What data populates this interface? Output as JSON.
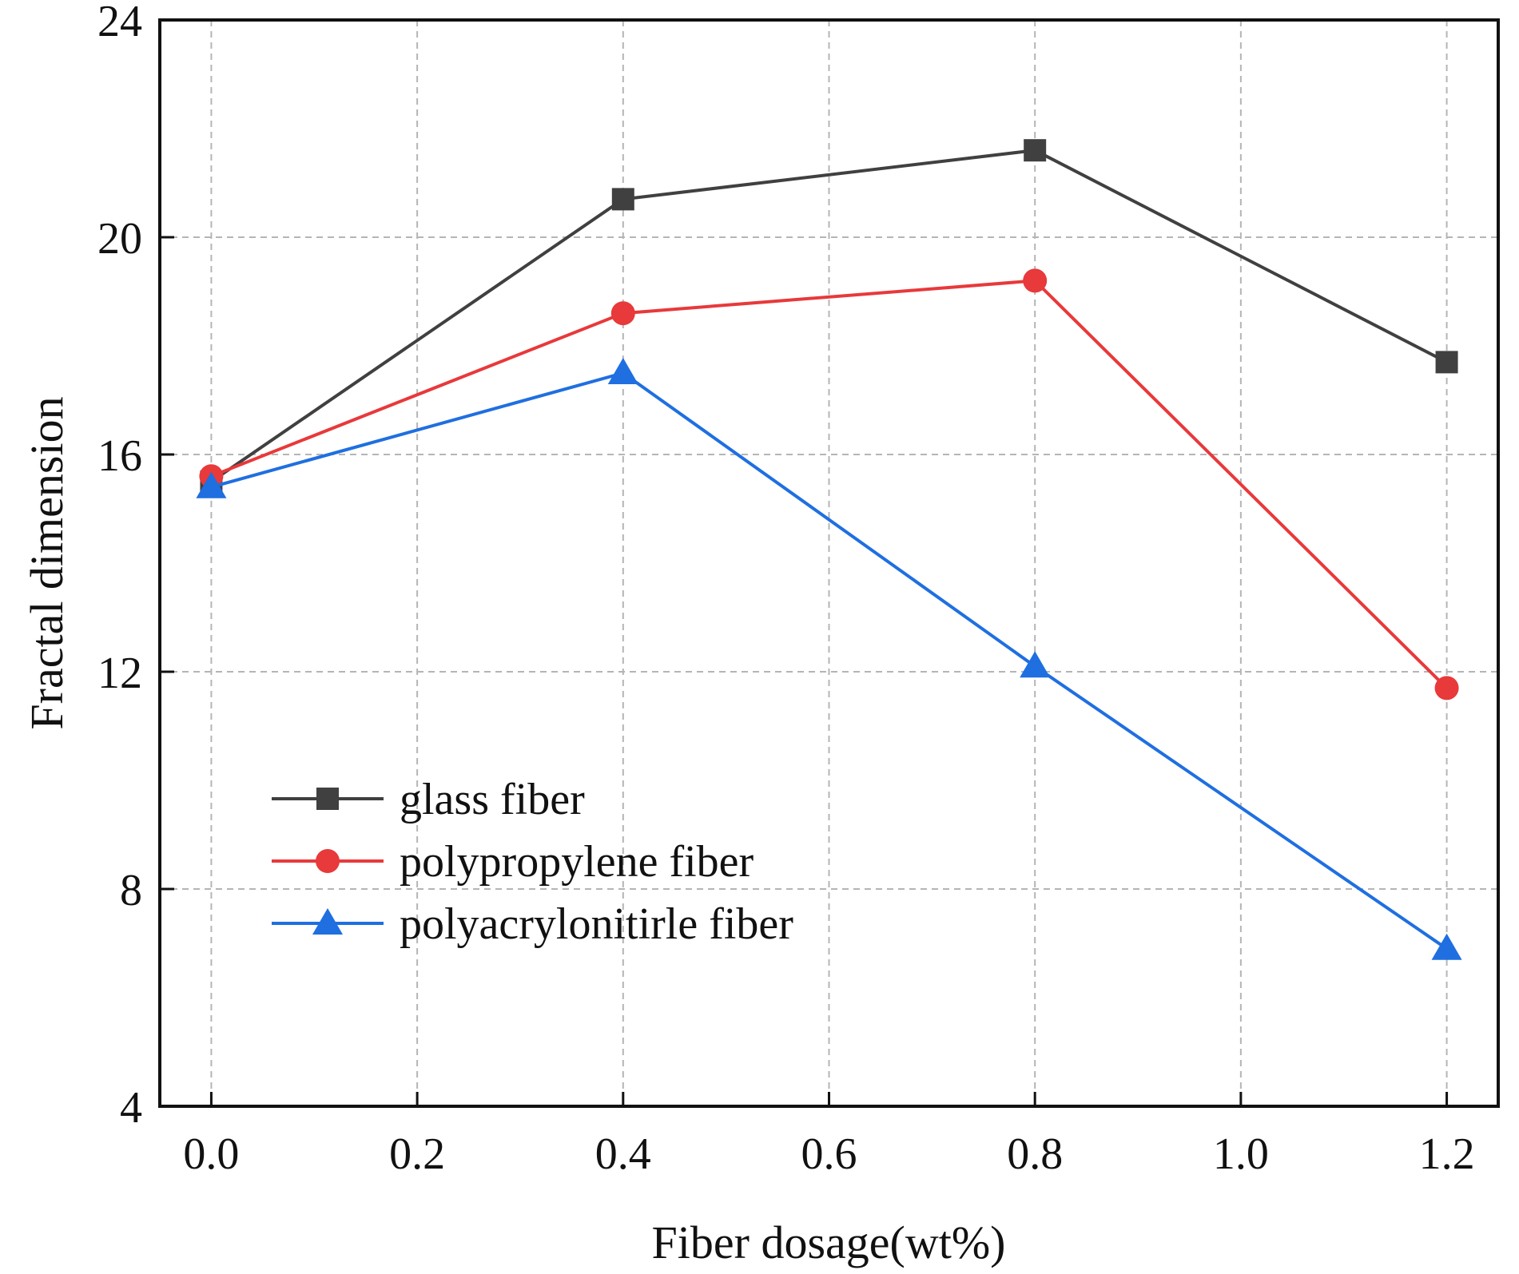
{
  "chart_data": {
    "type": "line",
    "title": "",
    "xlabel": "Fiber dosage(wt%)",
    "ylabel": "Fractal dimension",
    "xlim": [
      -0.05,
      1.25
    ],
    "ylim": [
      4,
      24
    ],
    "xticks": [
      0.0,
      0.2,
      0.4,
      0.6,
      0.8,
      1.0,
      1.2
    ],
    "xtick_labels": [
      "0.0",
      "0.2",
      "0.4",
      "0.6",
      "0.8",
      "1.0",
      "1.2"
    ],
    "yticks": [
      4,
      8,
      12,
      16,
      20,
      24
    ],
    "ytick_labels": [
      "4",
      "8",
      "12",
      "16",
      "20",
      "24"
    ],
    "grid": true,
    "legend_position": "bottom-left",
    "series": [
      {
        "name": "glass fiber",
        "marker": "square",
        "color": "#404040",
        "x": [
          0.0,
          0.4,
          0.8,
          1.2
        ],
        "values": [
          15.5,
          20.7,
          21.6,
          17.7
        ]
      },
      {
        "name": "polypropylene fiber",
        "marker": "circle",
        "color": "#e8393b",
        "x": [
          0.0,
          0.4,
          0.8,
          1.2
        ],
        "values": [
          15.6,
          18.6,
          19.2,
          11.7
        ]
      },
      {
        "name": "polyacrylonitirle fiber",
        "marker": "triangle",
        "color": "#1f6fe0",
        "x": [
          0.0,
          0.4,
          0.8,
          1.2
        ],
        "values": [
          15.4,
          17.5,
          12.1,
          6.9
        ]
      }
    ]
  }
}
